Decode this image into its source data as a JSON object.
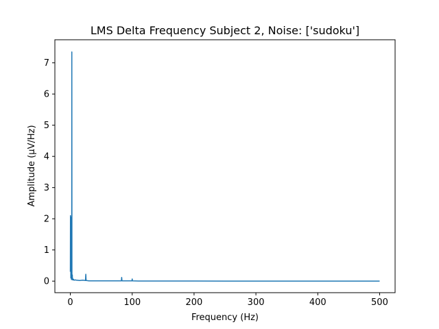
{
  "chart_data": {
    "type": "line",
    "title": "LMS Delta Frequency Subject 2, Noise: ['sudoku']",
    "xlabel": "Frequency (Hz)",
    "ylabel": "Amplitude (μV/Hz)",
    "xlim": [
      -25,
      525
    ],
    "ylim": [
      -0.37,
      7.74
    ],
    "xticks": [
      0,
      100,
      200,
      300,
      400,
      500
    ],
    "yticks": [
      0,
      1,
      2,
      3,
      4,
      5,
      6,
      7
    ],
    "grid": false,
    "series": [
      {
        "color": "#1f77b4",
        "x": [
          0,
          0.2,
          0.4,
          0.6,
          0.8,
          1.0,
          1.2,
          1.4,
          1.6,
          1.8,
          2.0,
          2.2,
          2.4,
          2.6,
          2.8,
          3.0,
          3.2,
          3.4,
          3.6,
          3.8,
          4.0,
          4.5,
          5,
          6,
          8,
          10,
          15,
          20,
          24.5,
          25,
          25.5,
          30,
          40,
          50,
          60,
          70,
          80,
          82.5,
          83,
          83.5,
          90,
          99.5,
          100,
          100.5,
          110,
          120,
          130,
          140,
          150,
          160,
          200,
          250,
          300,
          350,
          400,
          450,
          500
        ],
        "values": [
          0.3,
          2.1,
          0.6,
          1.9,
          0.1,
          2.05,
          0.25,
          1.5,
          0.15,
          0.05,
          0.4,
          0.1,
          7.35,
          0.08,
          0.12,
          0.05,
          0.2,
          0.06,
          0.1,
          0.04,
          0.05,
          0.04,
          0.06,
          0.03,
          0.04,
          0.03,
          0.02,
          0.03,
          0.02,
          0.22,
          0.02,
          0.01,
          0.01,
          0.01,
          0.01,
          0.01,
          0.01,
          0.01,
          0.12,
          0.01,
          0.01,
          0.01,
          0.07,
          0.01,
          0.005,
          0.005,
          0.005,
          0.004,
          0.004,
          0.003,
          0.004,
          0.002,
          0.002,
          0.001,
          0.001,
          0.001,
          0.001
        ]
      }
    ]
  }
}
